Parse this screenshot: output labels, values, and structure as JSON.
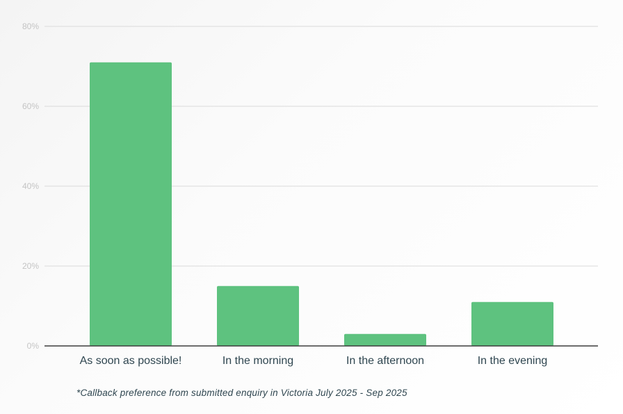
{
  "chart_data": {
    "type": "bar",
    "categories": [
      "As soon as possible!",
      "In the morning",
      "In the afternoon",
      "In the evening"
    ],
    "values": [
      71,
      15,
      3,
      11
    ],
    "title": "",
    "xlabel": "",
    "ylabel": "",
    "ylim": [
      0,
      80
    ],
    "yticks": [
      0,
      20,
      40,
      60,
      80
    ],
    "ytick_labels": [
      "0%",
      "20%",
      "40%",
      "60%",
      "80%"
    ],
    "grid": true,
    "bar_color": "#5ec27f",
    "footnote": "*Callback preference from submitted enquiry in Victoria July 2025 - Sep 2025"
  }
}
